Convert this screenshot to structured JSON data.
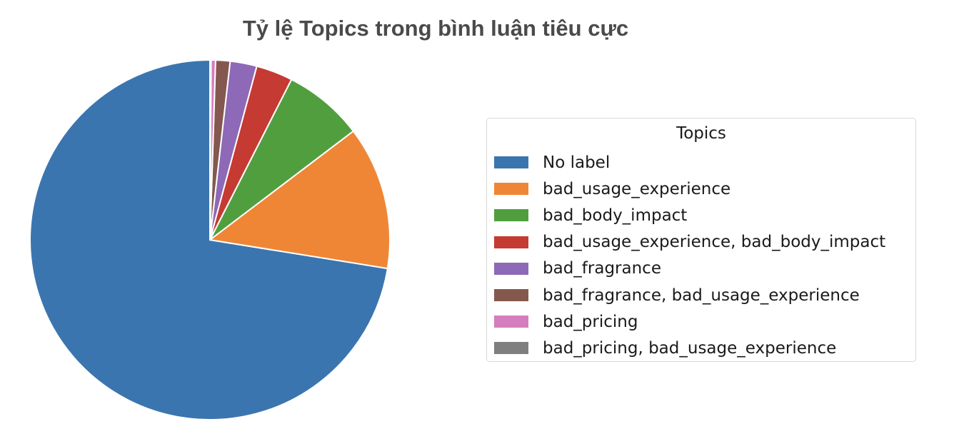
{
  "chart_data": {
    "type": "pie",
    "title": "Tỷ lệ Topics trong bình luận tiêu cực",
    "start_angle_deg": 90,
    "direction": "counterclockwise",
    "legend": {
      "title": "Topics",
      "placement": "right"
    },
    "slices": [
      {
        "label": "No label",
        "value": 72.6,
        "color": "#3b75af"
      },
      {
        "label": "bad_usage_experience",
        "value": 12.9,
        "color": "#ef8636"
      },
      {
        "label": "bad_body_impact",
        "value": 7.2,
        "color": "#519e3e"
      },
      {
        "label": "bad_usage_experience, bad_body_impact",
        "value": 3.3,
        "color": "#c53a32"
      },
      {
        "label": "bad_fragrance",
        "value": 2.4,
        "color": "#8d69b8"
      },
      {
        "label": "bad_fragrance, bad_usage_experience",
        "value": 1.3,
        "color": "#84584e"
      },
      {
        "label": "bad_pricing",
        "value": 0.4,
        "color": "#d57dbe"
      },
      {
        "label": "bad_pricing, bad_usage_experience",
        "value": 0.1,
        "color": "#7f7f7f"
      }
    ]
  }
}
